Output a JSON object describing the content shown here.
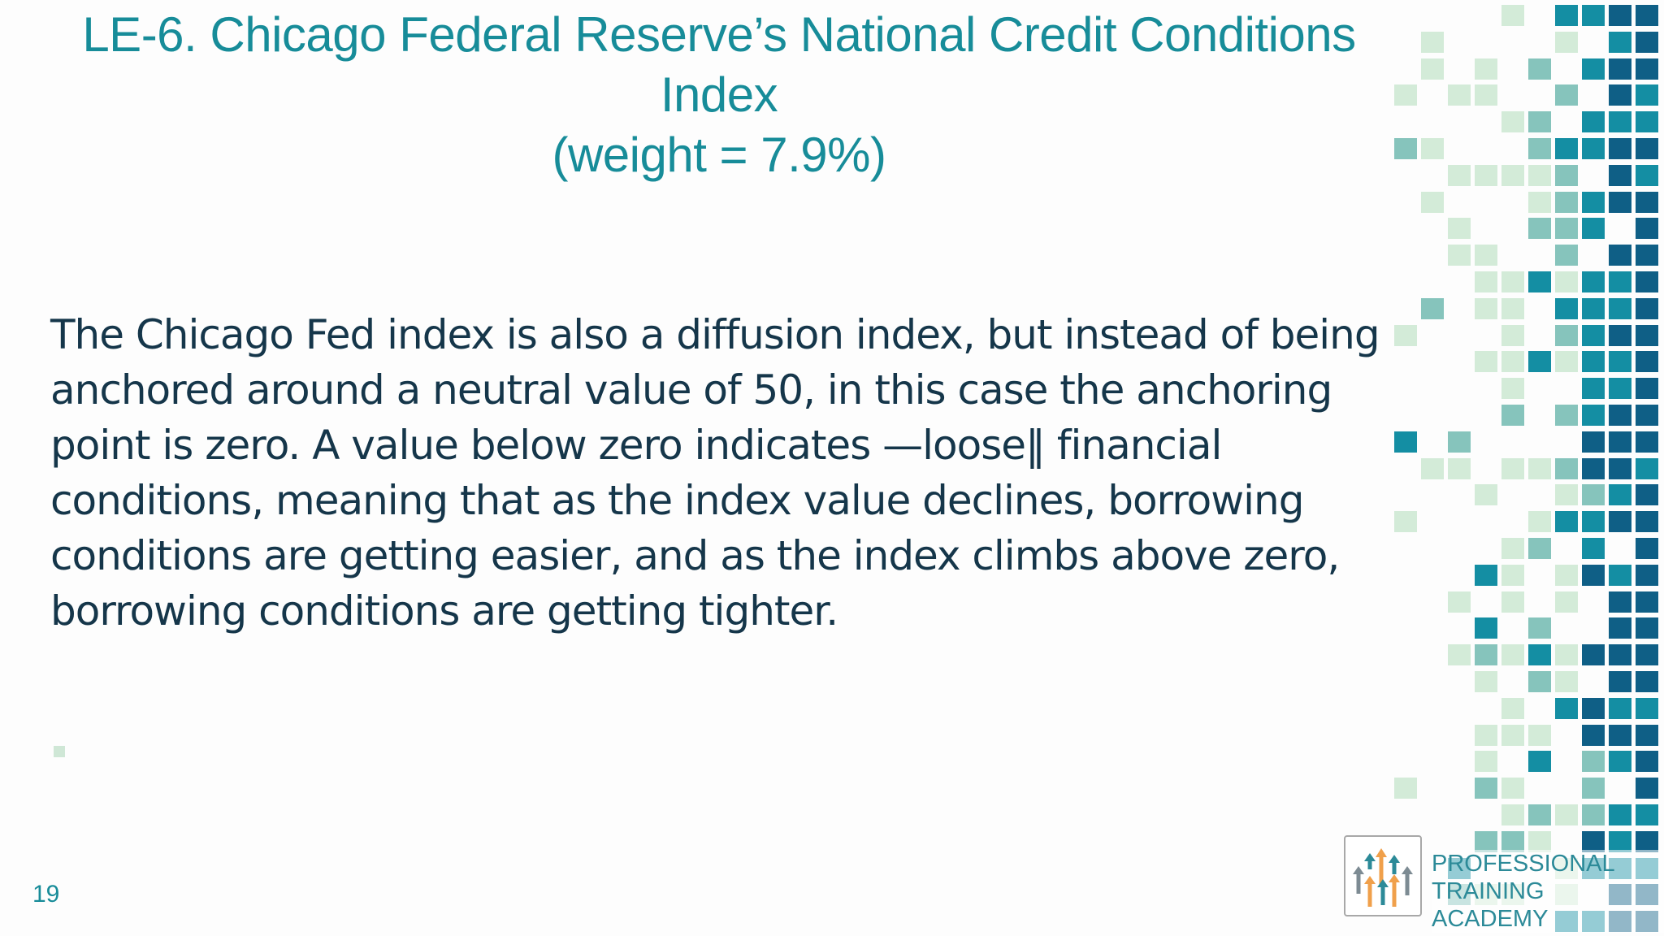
{
  "slide": {
    "title_line1": "LE-6. Chicago Federal Reserve’s National Credit Conditions Index",
    "title_line2": "(weight = 7.9%)",
    "body": " The Chicago Fed index is also a diffusion index, but instead of being\nanchored around a neutral value of 50, in this case the anchoring\npoint is zero. A value below zero indicates —loose‖ financial\nconditions, meaning that as the index value declines, borrowing\nconditions are getting easier, and as the index climbs above zero,\nborrowing conditions are getting tighter.",
    "page_number": "19"
  },
  "logo": {
    "line1": "PROFESSIONAL",
    "line2": "TRAINING ACADEMY"
  },
  "colors": {
    "title": "#178c99",
    "body": "#15364a",
    "tile_light": "#d3ebd8",
    "tile_mid": "#86c4bc",
    "tile_teal": "#148ea3",
    "tile_dark": "#0f5f86",
    "logo_orange": "#f0a04b",
    "logo_teal": "#2c8a98"
  }
}
